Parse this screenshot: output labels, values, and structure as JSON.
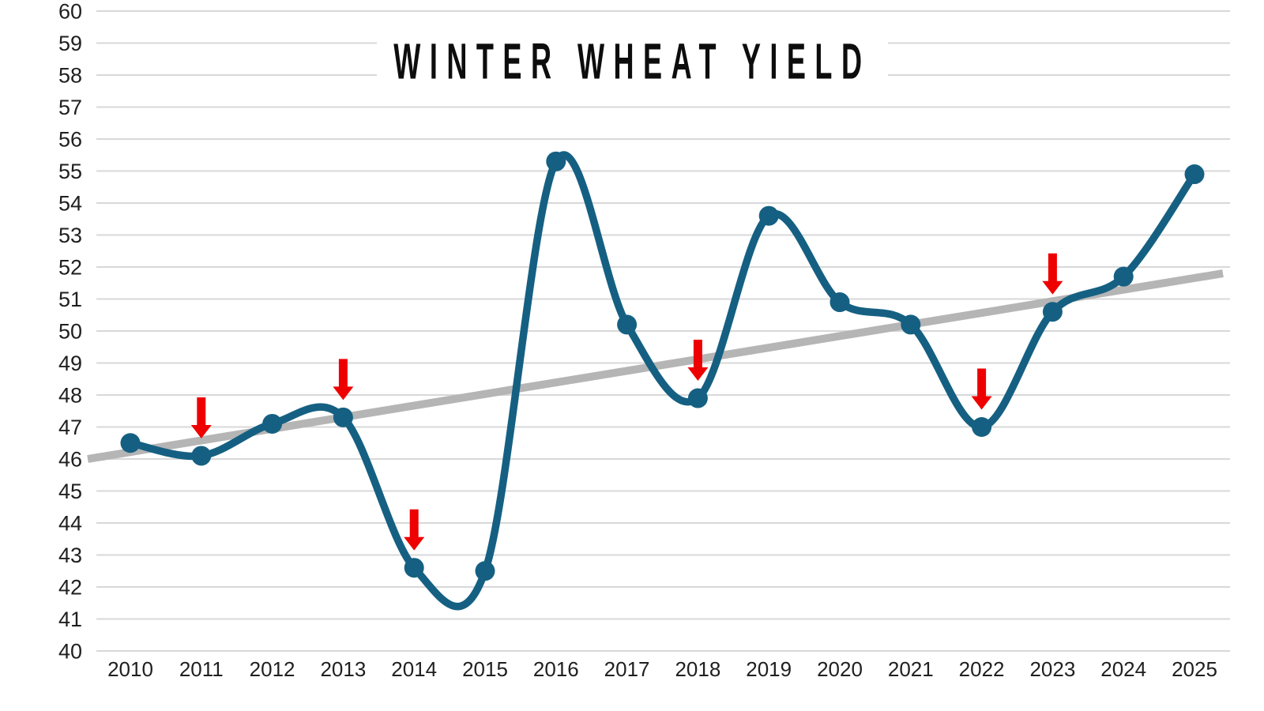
{
  "chart_data": {
    "type": "line",
    "title": "WINTER WHEAT YIELD",
    "x": [
      2010,
      2011,
      2012,
      2013,
      2014,
      2015,
      2016,
      2017,
      2018,
      2019,
      2020,
      2021,
      2022,
      2023,
      2024,
      2025
    ],
    "series": [
      {
        "name": "winter-wheat-yield",
        "values": [
          46.5,
          46.1,
          47.1,
          47.3,
          42.6,
          42.5,
          55.3,
          50.2,
          47.9,
          53.6,
          50.9,
          50.2,
          47.0,
          50.6,
          51.7,
          54.9
        ],
        "smooth": true,
        "marker": "circle"
      }
    ],
    "trendline": {
      "type": "linear",
      "start_value": 46.0,
      "end_value": 51.8
    },
    "annotations": {
      "down_arrow_years": [
        2011,
        2013,
        2014,
        2018,
        2022,
        2023
      ]
    },
    "ylim": [
      40,
      60
    ],
    "y_ticks": [
      40,
      41,
      42,
      43,
      44,
      45,
      46,
      47,
      48,
      49,
      50,
      51,
      52,
      53,
      54,
      55,
      56,
      57,
      58,
      59,
      60
    ],
    "grid": "horizontal",
    "legend": "none",
    "colors": {
      "line": "#156082",
      "marker": "#156082",
      "trend": "#b5b5b5",
      "grid": "#d8d8d8",
      "arrow": "#ee0000",
      "tick_text": "#1f1f1f",
      "title_text": "#0d0d0d",
      "background": "#ffffff"
    }
  }
}
